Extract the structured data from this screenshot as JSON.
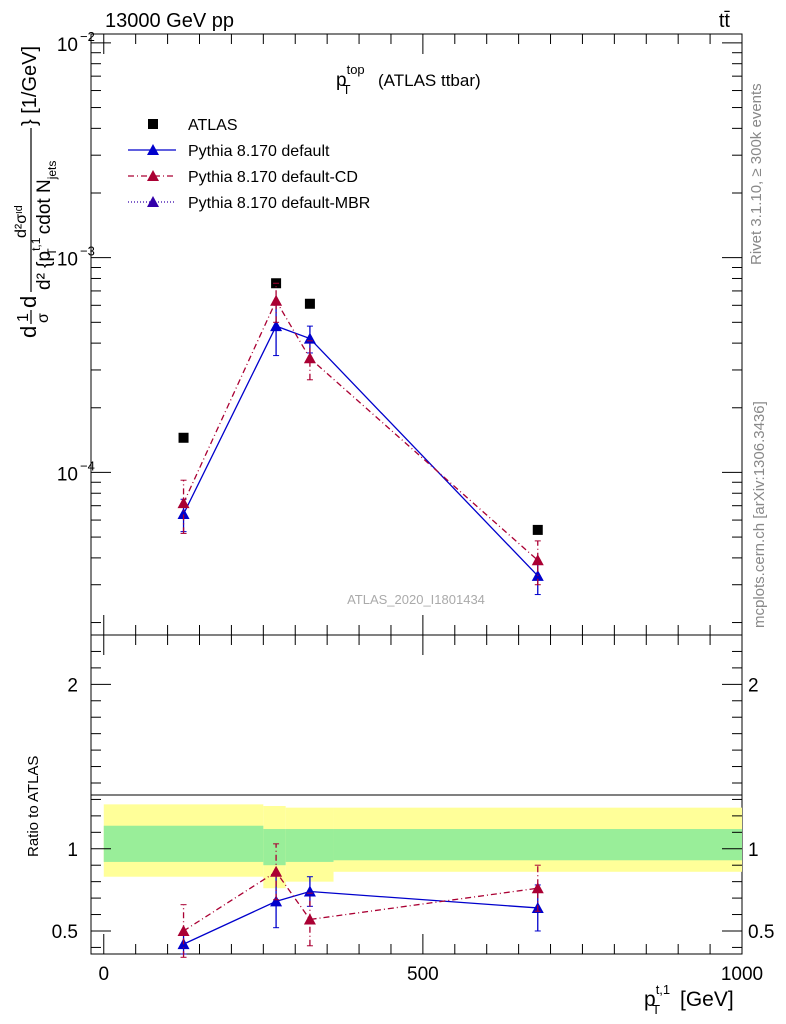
{
  "header": {
    "energy": "13000 GeV pp",
    "process": "tt̄"
  },
  "side_labels": {
    "rivet": "Rivet 3.1.10, ≥ 300k events",
    "mcplots": "mcplots.cern.ch [arXiv:1306.3436]"
  },
  "analysis_id": "ATLAS_2020_I1801434",
  "plot_title": {
    "main": "p",
    "sup": "top",
    "sub": "T",
    "suffix": "(ATLAS ttbar)"
  },
  "y_axis_label": {
    "lead": "d",
    "frac1_num": "1",
    "frac1_den": "σ",
    "mid": "d",
    "frac2_num": "d²σᶦᵈ",
    "frac2_den": "d² {p",
    "frac2_den_sup": "t,1",
    "frac2_den_sub": "T",
    "frac2_den_rest": "cdot N",
    "frac2_den_rest_sub": "jets",
    "units": "} [1/GeV]"
  },
  "ratio_y_label": "Ratio to ATLAS",
  "x_axis_label": {
    "main": "p",
    "sup": "t,1",
    "sub": "T",
    "units": "[GeV]"
  },
  "legend": [
    {
      "label": "ATLAS",
      "color": "#000000",
      "style": "marker"
    },
    {
      "label": "Pythia 8.170 default",
      "color": "#0000cc",
      "style": "solid"
    },
    {
      "label": "Pythia 8.170 default-CD",
      "color": "#aa0033",
      "style": "dashdot"
    },
    {
      "label": "Pythia 8.170 default-MBR",
      "color": "#3300aa",
      "style": "dotted"
    }
  ],
  "chart_data": [
    {
      "type": "scatter",
      "panel": "main",
      "yscale": "log",
      "xlim": [
        -20,
        1000
      ],
      "ylim": [
        1.75e-05,
        0.011
      ],
      "y_ticks": [
        {
          "value": 0.01,
          "label": "10",
          "exp": "−2"
        },
        {
          "value": 0.001,
          "label": "10",
          "exp": "−3"
        },
        {
          "value": 0.0001,
          "label": "10",
          "exp": "−4"
        }
      ],
      "series": [
        {
          "name": "ATLAS",
          "x": [
            125,
            270,
            323,
            680
          ],
          "y": [
            0.000145,
            0.00076,
            0.00061,
            5.4e-05
          ],
          "err": [
            0,
            0,
            0,
            0
          ]
        },
        {
          "name": "Pythia 8.170 default",
          "x": [
            125,
            270,
            323,
            680
          ],
          "y": [
            6.4e-05,
            0.00048,
            0.00042,
            3.3e-05
          ],
          "err": [
            1.1e-05,
            0.00013,
            6e-05,
            6e-06
          ]
        },
        {
          "name": "Pythia 8.170 default-CD",
          "x": [
            125,
            270,
            323,
            680
          ],
          "y": [
            7.2e-05,
            0.00063,
            0.00034,
            3.9e-05
          ],
          "err": [
            2e-05,
            0.00013,
            7e-05,
            9e-06
          ]
        }
      ]
    },
    {
      "type": "scatter",
      "panel": "ratio",
      "xlim": [
        -20,
        1000
      ],
      "ylim": [
        0.36,
        2.3
      ],
      "y_ticks": [
        0.5,
        1,
        2
      ],
      "x_ticks": [
        0,
        500,
        1000
      ],
      "bands": [
        {
          "name": "ATLAS stat. uncertainty",
          "color": "#99ee99",
          "bins": [
            {
              "x0": 0,
              "x1": 250,
              "lo": 0.92,
              "hi": 1.14
            },
            {
              "x0": 250,
              "x1": 285,
              "lo": 0.9,
              "hi": 1.12
            },
            {
              "x0": 285,
              "x1": 360,
              "lo": 0.92,
              "hi": 1.12
            },
            {
              "x0": 360,
              "x1": 1000,
              "lo": 0.93,
              "hi": 1.12
            }
          ]
        },
        {
          "name": "ATLAS total uncertainty",
          "color": "#ffff99",
          "bins": [
            {
              "x0": 0,
              "x1": 250,
              "lo": 0.83,
              "hi": 1.27
            },
            {
              "x0": 250,
              "x1": 285,
              "lo": 0.76,
              "hi": 1.26
            },
            {
              "x0": 285,
              "x1": 360,
              "lo": 0.8,
              "hi": 1.25
            },
            {
              "x0": 360,
              "x1": 1000,
              "lo": 0.86,
              "hi": 1.25
            }
          ]
        }
      ],
      "series": [
        {
          "name": "Pythia 8.170 default",
          "x": [
            125,
            270,
            323,
            680
          ],
          "y": [
            0.42,
            0.68,
            0.74,
            0.64
          ],
          "err": [
            0.06,
            0.16,
            0.09,
            0.14
          ]
        },
        {
          "name": "Pythia 8.170 default-CD",
          "x": [
            125,
            270,
            323,
            680
          ],
          "y": [
            0.5,
            0.86,
            0.57,
            0.76
          ],
          "err": [
            0.16,
            0.17,
            0.16,
            0.14
          ]
        }
      ]
    }
  ]
}
